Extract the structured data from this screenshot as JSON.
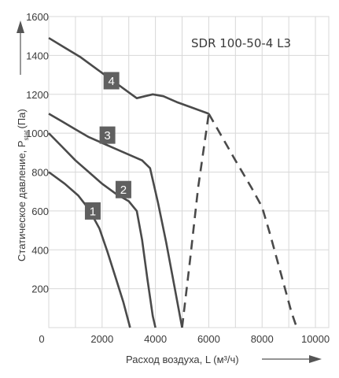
{
  "chart_data": {
    "type": "line",
    "title": "SDR 100-50-4 L3",
    "xlabel": "Расход воздуха, L (м³/ч)",
    "ylabel_main": "Статическое давление, P",
    "ylabel_sub": "stat",
    "ylabel_unit": "(Па)",
    "xlim": [
      0,
      10500
    ],
    "ylim": [
      0,
      1600
    ],
    "xticks": [
      "0",
      "2000",
      "4000",
      "6000",
      "8000",
      "10000"
    ],
    "yticks": [
      "200",
      "400",
      "600",
      "800",
      "1000",
      "1200",
      "1400",
      "1600"
    ],
    "grid": true,
    "series": [
      {
        "name": "1",
        "style": "solid",
        "points": [
          [
            0,
            800
          ],
          [
            600,
            740
          ],
          [
            1100,
            680
          ],
          [
            1500,
            610
          ],
          [
            1900,
            510
          ],
          [
            2200,
            390
          ],
          [
            2500,
            260
          ],
          [
            2800,
            130
          ],
          [
            3050,
            0
          ]
        ]
      },
      {
        "name": "2",
        "style": "solid",
        "points": [
          [
            0,
            1000
          ],
          [
            500,
            930
          ],
          [
            1000,
            860
          ],
          [
            1500,
            800
          ],
          [
            2000,
            740
          ],
          [
            2500,
            690
          ],
          [
            3000,
            650
          ],
          [
            3300,
            600
          ],
          [
            3500,
            450
          ],
          [
            3700,
            250
          ],
          [
            3900,
            60
          ],
          [
            4000,
            0
          ]
        ]
      },
      {
        "name": "3",
        "style": "solid",
        "points": [
          [
            0,
            1100
          ],
          [
            500,
            1060
          ],
          [
            1000,
            1020
          ],
          [
            1500,
            980
          ],
          [
            2000,
            950
          ],
          [
            2500,
            920
          ],
          [
            3000,
            890
          ],
          [
            3500,
            860
          ],
          [
            3800,
            820
          ],
          [
            4100,
            640
          ],
          [
            4400,
            440
          ],
          [
            4700,
            220
          ],
          [
            5000,
            0
          ]
        ]
      },
      {
        "name": "4",
        "style": "solid",
        "points": [
          [
            0,
            1490
          ],
          [
            600,
            1440
          ],
          [
            1200,
            1390
          ],
          [
            1800,
            1330
          ],
          [
            2400,
            1270
          ],
          [
            3000,
            1210
          ],
          [
            3300,
            1180
          ],
          [
            3600,
            1190
          ],
          [
            3900,
            1200
          ],
          [
            4300,
            1190
          ],
          [
            4800,
            1160
          ],
          [
            5400,
            1130
          ],
          [
            6000,
            1100
          ]
        ]
      },
      {
        "name": "",
        "style": "dashed",
        "points": [
          [
            5000,
            0
          ],
          [
            5300,
            350
          ],
          [
            5600,
            720
          ],
          [
            6000,
            1100
          ]
        ]
      },
      {
        "name": "",
        "style": "dashed",
        "points": [
          [
            6000,
            1100
          ],
          [
            6500,
            980
          ],
          [
            7000,
            860
          ],
          [
            7600,
            720
          ],
          [
            8000,
            620
          ],
          [
            8300,
            480
          ],
          [
            8700,
            280
          ],
          [
            9100,
            80
          ],
          [
            9300,
            0
          ]
        ]
      }
    ],
    "labels": [
      {
        "text": "1",
        "x": 1650,
        "y": 600
      },
      {
        "text": "2",
        "x": 2800,
        "y": 710
      },
      {
        "text": "3",
        "x": 2200,
        "y": 990
      },
      {
        "text": "4",
        "x": 2350,
        "y": 1270
      }
    ],
    "colors": {
      "line": "#4a4a4a",
      "grid": "#d8d8d8",
      "box": "#606060",
      "axis": "#555555"
    }
  }
}
